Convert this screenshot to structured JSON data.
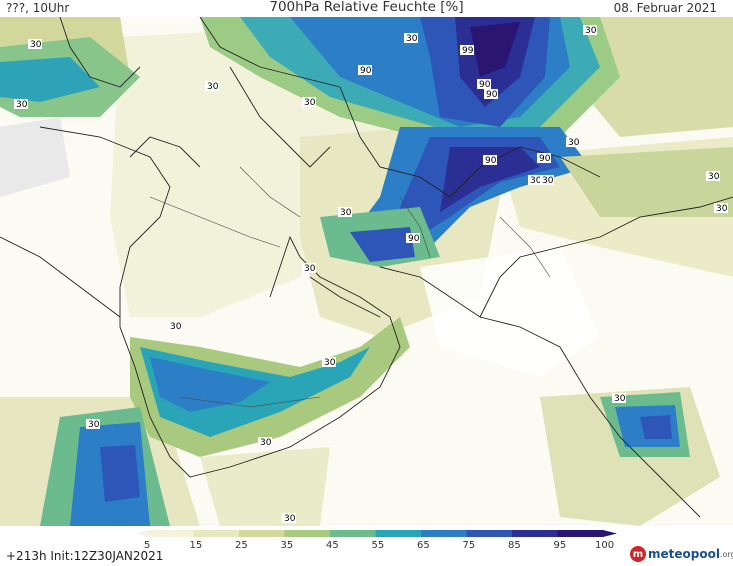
{
  "header": {
    "location": "???, 10Uhr",
    "title": "700hPa Relative Feuchte [%]",
    "date": "08. Februar 2021"
  },
  "map": {
    "contour_labels": [
      "30",
      "30",
      "30",
      "30",
      "30",
      "30",
      "30",
      "30",
      "30",
      "30",
      "30",
      "30",
      "30",
      "30",
      "30",
      "30",
      "30",
      "30",
      "30",
      "90",
      "90",
      "90",
      "90",
      "90",
      "90",
      "99"
    ]
  },
  "legend": {
    "ticks": [
      "5",
      "15",
      "25",
      "35",
      "45",
      "55",
      "65",
      "75",
      "85",
      "95",
      "100"
    ],
    "colors": [
      "#ffffff",
      "#f5f3dc",
      "#e8e8c0",
      "#d4d89a",
      "#a9c97e",
      "#6cbb8e",
      "#2aa5b8",
      "#2c7fc6",
      "#2e55b8",
      "#2b2f94",
      "#2a1570"
    ]
  },
  "footer": {
    "run": "+213h Init:12Z30JAN2021",
    "brand": "meteopool",
    "brand_suffix": ".org"
  }
}
